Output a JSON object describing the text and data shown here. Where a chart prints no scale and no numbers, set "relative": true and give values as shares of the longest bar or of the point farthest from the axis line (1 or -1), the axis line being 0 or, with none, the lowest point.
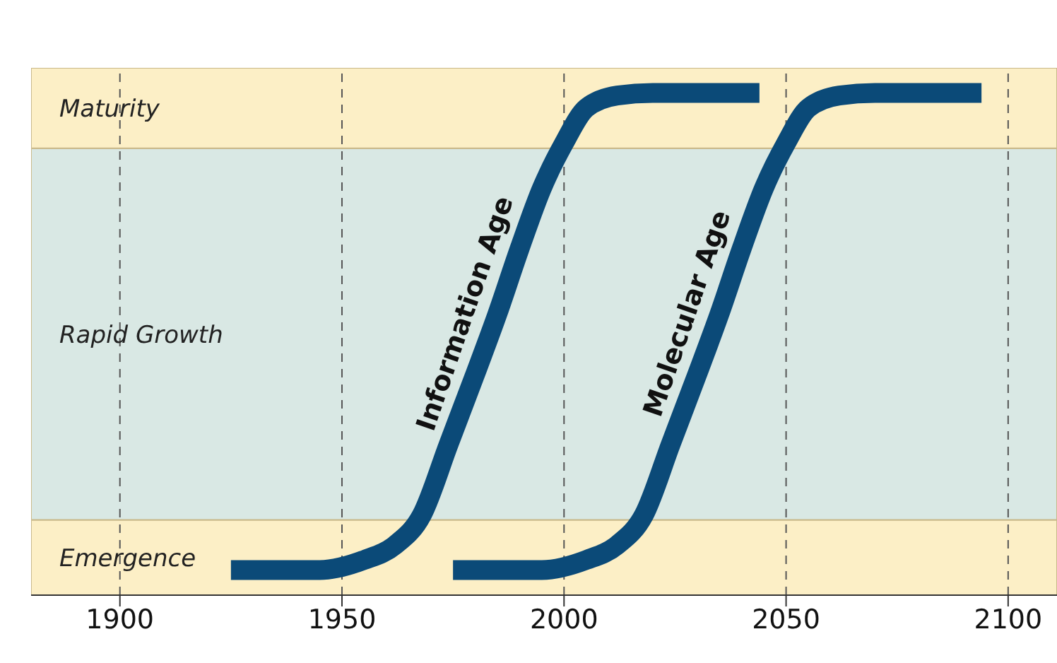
{
  "chart_data": {
    "type": "line",
    "relative": true,
    "xlim": [
      1880,
      2111
    ],
    "xticks": [
      1900,
      1950,
      2000,
      2050,
      2100
    ],
    "grid": "x",
    "line_style": "solid",
    "marker": "none",
    "legend": false,
    "bands": [
      {
        "axis": "y",
        "from": 0,
        "to": 0.15,
        "label": "Emergence",
        "color": "#fcefc6"
      },
      {
        "axis": "y",
        "from": 0.15,
        "to": 0.89,
        "label": "Rapid Growth",
        "color": "#d9e8e4"
      },
      {
        "axis": "y",
        "from": 0.89,
        "to": 1.05,
        "label": "Maturity",
        "color": "#fcefc6"
      }
    ],
    "series": [
      {
        "name": "Information Age",
        "color": "#0b4a78",
        "x": [
          1925,
          1945,
          1955,
          1962,
          1968,
          1974,
          1980,
          1985,
          1990,
          1995,
          2000,
          2005,
          2012,
          2020,
          2044
        ],
        "values": [
          0.05,
          0.05,
          0.07,
          0.1,
          0.16,
          0.3,
          0.44,
          0.56,
          0.69,
          0.81,
          0.9,
          0.97,
          0.995,
          1,
          1
        ]
      },
      {
        "name": "Molecular Age",
        "color": "#0b4a78",
        "x": [
          1975,
          1995,
          2005,
          2012,
          2018,
          2024,
          2030,
          2035,
          2040,
          2045,
          2050,
          2055,
          2062,
          2070,
          2094
        ],
        "values": [
          0.05,
          0.05,
          0.07,
          0.1,
          0.16,
          0.3,
          0.44,
          0.56,
          0.69,
          0.81,
          0.9,
          0.97,
          0.995,
          1,
          1
        ]
      }
    ]
  }
}
